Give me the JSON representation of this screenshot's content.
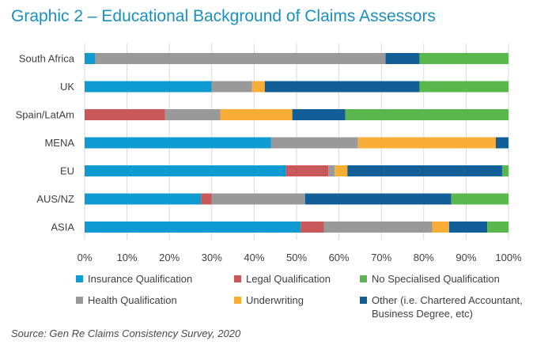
{
  "title": "Graphic 2 – Educational Background of Claims Assessors",
  "source": "Source: Gen Re Claims Consistency Survey, 2020",
  "chart_data": {
    "type": "bar",
    "orientation": "horizontal",
    "stacked": true,
    "categories": [
      "South Africa",
      "UK",
      "Spain/LatAm",
      "MENA",
      "EU",
      "AUS/NZ",
      "ASIA"
    ],
    "series": [
      {
        "name": "Insurance Qualification",
        "color": "#0e9bd2",
        "values": [
          2.5,
          30,
          0,
          44,
          47.5,
          27.5,
          51
        ]
      },
      {
        "name": "Legal Qualification",
        "color": "#c9585a",
        "values": [
          0,
          0,
          19,
          0,
          10,
          2.5,
          5.5
        ]
      },
      {
        "name": "Health Qualification",
        "color": "#999999",
        "values": [
          68.5,
          9.5,
          13,
          20.5,
          1.5,
          22,
          25.5
        ]
      },
      {
        "name": "Underwriting",
        "color": "#f8ad36",
        "values": [
          0,
          3,
          17,
          32.5,
          3,
          0,
          4
        ]
      },
      {
        "name": "Other (i.e. Chartered Accountant, Business Degree, etc)",
        "color": "#125f98",
        "values": [
          8,
          36.5,
          12.5,
          3,
          36.5,
          34.5,
          9
        ]
      },
      {
        "name": "No Specialised Qualification",
        "color": "#5ab74e",
        "values": [
          21,
          21,
          38.5,
          0,
          1.5,
          13.5,
          5
        ]
      }
    ],
    "xlim": [
      0,
      100
    ],
    "x_ticks": [
      "0%",
      "10%",
      "20%",
      "30%",
      "40%",
      "50%",
      "60%",
      "70%",
      "80%",
      "90%",
      "100%"
    ],
    "grid": true,
    "legend_position": "bottom"
  },
  "legend": [
    {
      "label": "Insurance Qualification",
      "color": "#0e9bd2"
    },
    {
      "label": "Legal Qualification",
      "color": "#c9585a"
    },
    {
      "label": "No Specialised Qualification",
      "color": "#5ab74e"
    },
    {
      "label": "Health Qualification",
      "color": "#999999"
    },
    {
      "label": "Underwriting",
      "color": "#f8ad36"
    },
    {
      "label": "Other (i.e. Chartered Accountant, Business Degree, etc)",
      "color": "#125f98"
    }
  ]
}
